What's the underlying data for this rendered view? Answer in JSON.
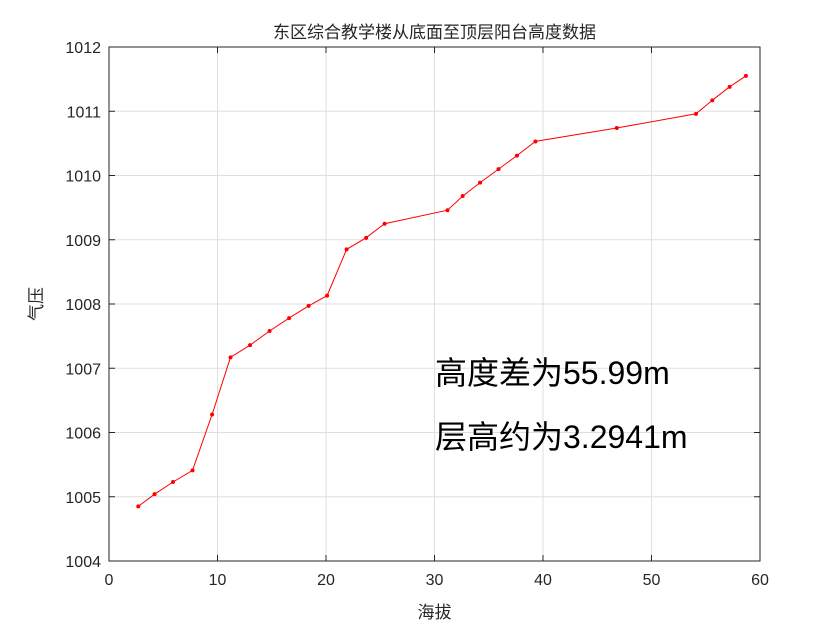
{
  "chart_data": {
    "type": "line",
    "title": "东区综合教学楼从底面至顶层阳台高度数据",
    "xlabel": "海拔",
    "ylabel": "气压",
    "xlim": [
      0,
      60
    ],
    "ylim": [
      1004,
      1012
    ],
    "xticks": [
      0,
      10,
      20,
      30,
      40,
      50,
      60
    ],
    "yticks": [
      1004,
      1005,
      1006,
      1007,
      1008,
      1009,
      1010,
      1011,
      1012
    ],
    "grid": true,
    "series": [
      {
        "color": "#ff0000",
        "marker": "point",
        "x": [
          2.7,
          4.2,
          5.9,
          7.7,
          9.5,
          11.2,
          13.0,
          14.8,
          16.6,
          18.4,
          20.1,
          21.9,
          23.7,
          25.4,
          31.2,
          32.6,
          34.2,
          35.9,
          37.6,
          39.3,
          46.8,
          54.1,
          55.6,
          57.2,
          58.7
        ],
        "y": [
          1004.85,
          1005.04,
          1005.23,
          1005.41,
          1006.28,
          1007.17,
          1007.36,
          1007.58,
          1007.78,
          1007.97,
          1008.13,
          1008.85,
          1009.03,
          1009.25,
          1009.46,
          1009.68,
          1009.89,
          1010.1,
          1010.31,
          1010.53,
          1010.74,
          1010.96,
          1011.17,
          1011.38,
          1011.55
        ]
      }
    ],
    "annotations": [
      "高度差为55.99m",
      "层高约为3.2941m"
    ]
  }
}
